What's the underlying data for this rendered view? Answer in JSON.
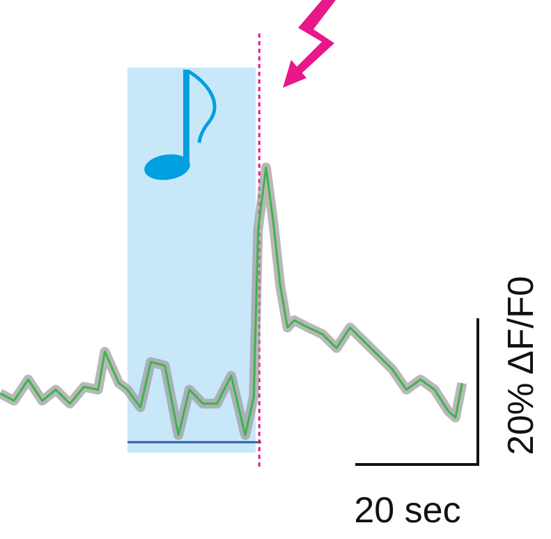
{
  "chart_data": {
    "type": "line",
    "x": [
      0,
      2.3,
      4.6,
      6.9,
      9.1,
      11.4,
      13.7,
      16,
      17.1,
      19.4,
      20.8,
      22.9,
      24.6,
      26.9,
      29.1,
      30.9,
      33.1,
      35.4,
      37.7,
      40,
      41.4,
      42.1,
      43.4,
      44.6,
      45.7,
      46.9,
      48,
      50.3,
      52.6,
      54.9,
      57.1,
      59.4,
      61.7,
      64,
      66.3,
      68.6,
      70.9,
      73.1,
      74.3,
      75.4
    ],
    "series": [
      {
        "color": "#3cb44b",
        "values": [
          6.2,
          5.2,
          8.1,
          5.2,
          6.7,
          4.8,
          7.1,
          6.7,
          11.9,
          7.6,
          6.7,
          4.3,
          10.5,
          10,
          0.5,
          6.7,
          4.8,
          4.8,
          8.6,
          0.5,
          5.7,
          28.6,
          37.1,
          29.5,
          21,
          15.2,
          16.2,
          15.2,
          14.3,
          12.4,
          15.2,
          13.3,
          11.4,
          9.5,
          6.7,
          8.1,
          6.7,
          3.8,
          2.9,
          7.6
        ]
      }
    ],
    "sound": [
      20.8,
      41.7
    ],
    "shock": 42.3,
    "scale_bars": {
      "x": {
        "value": 20,
        "label": "20 sec"
      },
      "y": {
        "value": 20,
        "label": "20% ΔF/F0"
      }
    }
  }
}
